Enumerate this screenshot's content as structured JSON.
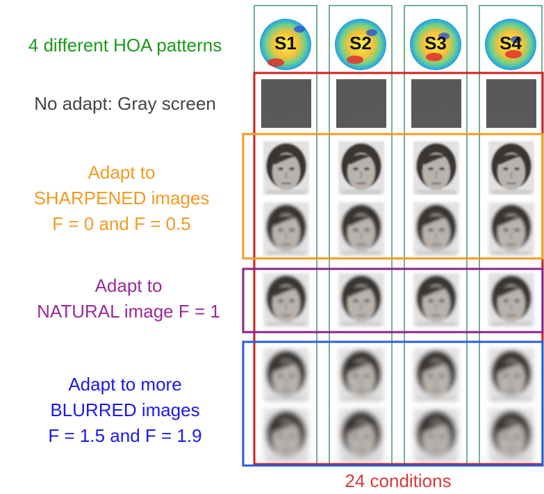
{
  "patterns": {
    "label": "4 different HOA patterns",
    "items": [
      "S1",
      "S2",
      "S3",
      "S4"
    ]
  },
  "conditions": [
    {
      "lines": [
        "No adapt: Gray screen"
      ]
    },
    {
      "lines": [
        "Adapt to",
        "SHARPENED images",
        "F = 0 and F = 0.5"
      ]
    },
    {
      "lines": [
        "Adapt to",
        "NATURAL image F = 1"
      ]
    },
    {
      "lines": [
        "Adapt to more",
        "BLURRED images",
        "F = 1.5 and F = 1.9"
      ]
    }
  ],
  "footer": "24 conditions"
}
